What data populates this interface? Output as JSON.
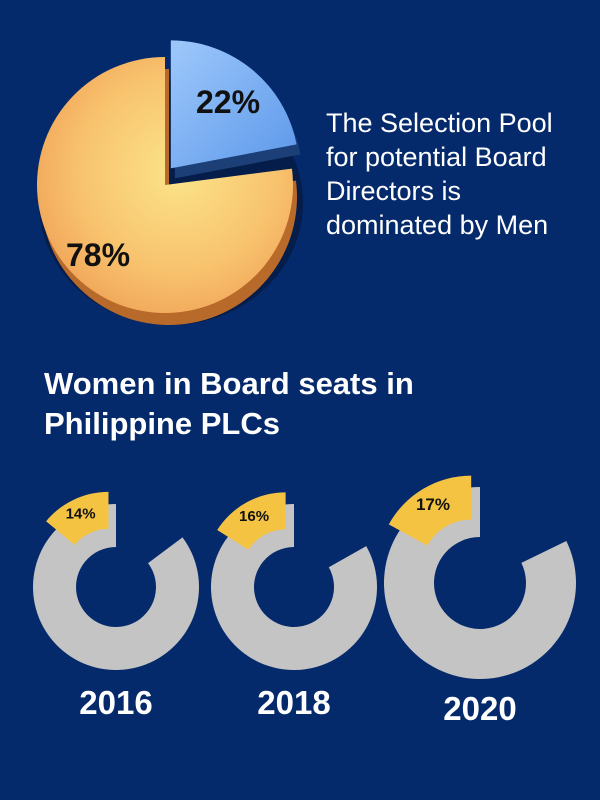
{
  "headline": "The Selection Pool\nfor potential Board\nDirectors is\ndominated by Men",
  "section_title": "Women in Board seats in\nPhilippine PLCs",
  "colors": {
    "background": "#052a6b",
    "pie_men": "#f6b565",
    "pie_women": "#7eb4f5",
    "donut_track": "#c4c4c4",
    "donut_highlight": "#f5c342"
  },
  "chart_data": [
    {
      "type": "pie",
      "title": "",
      "slices": [
        {
          "label": "22%",
          "value": 22,
          "color": "#7eb4f5"
        },
        {
          "label": "78%",
          "value": 78,
          "color": "#f6b565"
        }
      ]
    },
    {
      "type": "pie",
      "title": "",
      "categories": [
        "2016",
        "2018",
        "2020"
      ],
      "values": [
        14,
        16,
        17
      ],
      "labels": [
        "14%",
        "16%",
        "17%"
      ]
    }
  ]
}
